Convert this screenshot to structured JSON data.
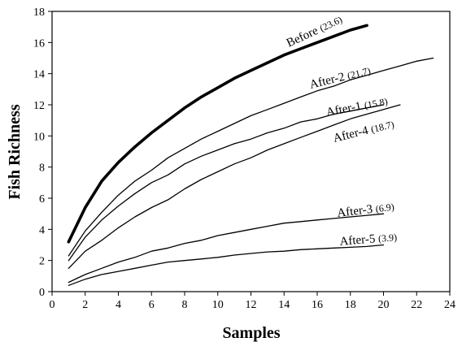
{
  "chart_data": {
    "type": "line",
    "title": "",
    "xlabel": "Samples",
    "ylabel": "Fish Richness",
    "xlim": [
      0,
      24
    ],
    "ylim": [
      0,
      18
    ],
    "x_ticks": [
      "0",
      "2",
      "4",
      "6",
      "8",
      "10",
      "12",
      "14",
      "16",
      "18",
      "20",
      "22",
      "24"
    ],
    "y_ticks": [
      "0",
      "2",
      "4",
      "6",
      "8",
      "10",
      "12",
      "14",
      "16",
      "18"
    ],
    "grid": false,
    "series": [
      {
        "name": "Before",
        "annotation": "(23.6)",
        "bold": true,
        "x": [
          1,
          2,
          3,
          4,
          5,
          6,
          7,
          8,
          9,
          10,
          11,
          12,
          13,
          14,
          15,
          16,
          17,
          18,
          19
        ],
        "y": [
          3.2,
          5.4,
          7.1,
          8.3,
          9.3,
          10.2,
          11.0,
          11.8,
          12.5,
          13.1,
          13.7,
          14.2,
          14.7,
          15.2,
          15.6,
          16.0,
          16.4,
          16.8,
          17.1
        ]
      },
      {
        "name": "After-2",
        "annotation": "(21.7)",
        "bold": false,
        "x": [
          1,
          2,
          3,
          4,
          5,
          6,
          7,
          8,
          9,
          10,
          11,
          12,
          13,
          14,
          15,
          16,
          17,
          18,
          19,
          20,
          21,
          22,
          23
        ],
        "y": [
          2.3,
          3.9,
          5.1,
          6.2,
          7.1,
          7.8,
          8.6,
          9.2,
          9.8,
          10.3,
          10.8,
          11.3,
          11.7,
          12.1,
          12.5,
          12.9,
          13.2,
          13.6,
          13.9,
          14.2,
          14.5,
          14.8,
          15.0
        ]
      },
      {
        "name": "After-1",
        "annotation": "(15.8)",
        "bold": false,
        "x": [
          1,
          2,
          3,
          4,
          5,
          6,
          7,
          8,
          9,
          10,
          11,
          12,
          13,
          14,
          15,
          16,
          17,
          18,
          19,
          20
        ],
        "y": [
          2.0,
          3.5,
          4.6,
          5.5,
          6.3,
          7.0,
          7.5,
          8.2,
          8.7,
          9.1,
          9.5,
          9.8,
          10.2,
          10.5,
          10.9,
          11.1,
          11.4,
          11.6,
          11.8,
          12.0
        ]
      },
      {
        "name": "After-4",
        "annotation": "(18.7)",
        "bold": false,
        "x": [
          1,
          2,
          3,
          4,
          5,
          6,
          7,
          8,
          9,
          10,
          11,
          12,
          13,
          14,
          15,
          16,
          17,
          18,
          19,
          20,
          21
        ],
        "y": [
          1.5,
          2.6,
          3.3,
          4.1,
          4.8,
          5.4,
          5.9,
          6.6,
          7.2,
          7.7,
          8.2,
          8.6,
          9.1,
          9.5,
          9.9,
          10.3,
          10.7,
          11.1,
          11.4,
          11.7,
          12.0
        ]
      },
      {
        "name": "After-3",
        "annotation": "(6.9)",
        "bold": false,
        "x": [
          1,
          2,
          3,
          4,
          5,
          6,
          7,
          8,
          9,
          10,
          11,
          12,
          13,
          14,
          15,
          16,
          17,
          18,
          19,
          20
        ],
        "y": [
          0.6,
          1.1,
          1.5,
          1.9,
          2.2,
          2.6,
          2.8,
          3.1,
          3.3,
          3.6,
          3.8,
          4.0,
          4.2,
          4.4,
          4.5,
          4.6,
          4.7,
          4.8,
          4.9,
          5.0
        ]
      },
      {
        "name": "After-5",
        "annotation": "(3.9)",
        "bold": false,
        "x": [
          1,
          2,
          3,
          4,
          5,
          6,
          7,
          8,
          9,
          10,
          11,
          12,
          13,
          14,
          15,
          16,
          17,
          18,
          19,
          20
        ],
        "y": [
          0.4,
          0.8,
          1.1,
          1.3,
          1.5,
          1.7,
          1.9,
          2.0,
          2.1,
          2.2,
          2.35,
          2.45,
          2.55,
          2.6,
          2.7,
          2.75,
          2.8,
          2.85,
          2.9,
          3.0
        ]
      }
    ]
  }
}
